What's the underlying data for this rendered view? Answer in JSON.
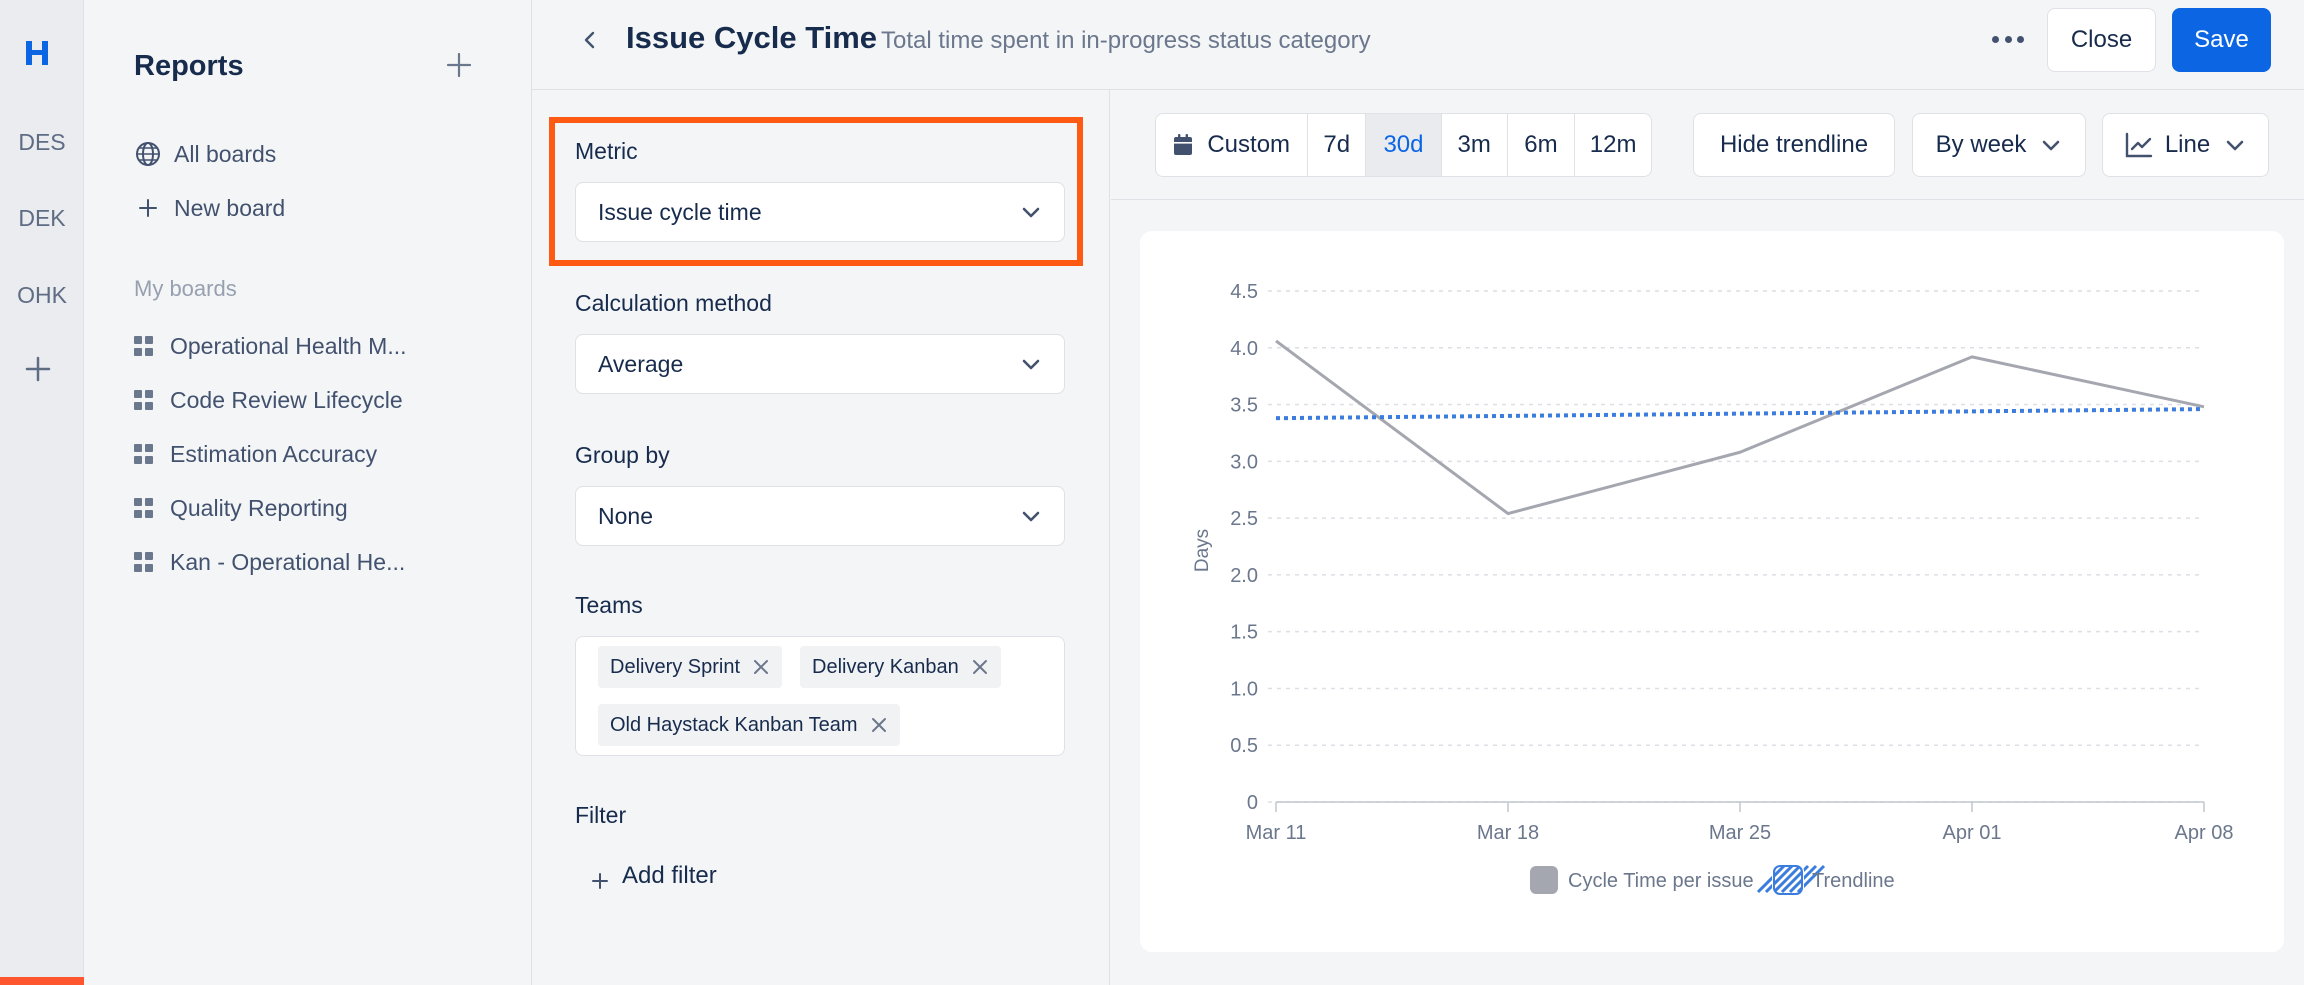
{
  "rail": {
    "projects": [
      "DES",
      "DEK",
      "OHK"
    ]
  },
  "sidebar": {
    "title": "Reports",
    "all_boards": "All boards",
    "new_board": "New board",
    "my_boards_label": "My boards",
    "boards": [
      "Operational Health M...",
      "Code Review Lifecycle",
      "Estimation Accuracy",
      "Quality Reporting",
      "Kan - Operational He..."
    ]
  },
  "header": {
    "title": "Issue Cycle Time",
    "subtitle": "Total time spent in in-progress status category",
    "close_label": "Close",
    "save_label": "Save"
  },
  "config": {
    "metric_label": "Metric",
    "metric_value": "Issue cycle time",
    "calc_label": "Calculation method",
    "calc_value": "Average",
    "group_label": "Group by",
    "group_value": "None",
    "teams_label": "Teams",
    "teams": [
      "Delivery Sprint",
      "Delivery Kanban",
      "Old Haystack Kanban Team"
    ],
    "filter_label": "Filter",
    "add_filter_label": "Add filter",
    "highlight_color": "#ff5a13"
  },
  "toolbar": {
    "ranges": [
      "Custom",
      "7d",
      "30d",
      "3m",
      "6m",
      "12m"
    ],
    "active_range": "30d",
    "trendline_label": "Hide trendline",
    "group_label": "By week",
    "chart_type_label": "Line"
  },
  "chart_data": {
    "type": "line",
    "x": [
      "Mar 11",
      "Mar 18",
      "Mar 25",
      "Apr 01",
      "Apr 08"
    ],
    "series": [
      {
        "name": "Cycle Time per issue",
        "values": [
          4.06,
          2.54,
          3.08,
          3.92,
          3.48
        ],
        "color": "#a5a7b0"
      },
      {
        "name": "Trendline",
        "values": [
          3.38,
          3.4,
          3.42,
          3.44,
          3.46
        ],
        "color": "#3b7ddd",
        "style": "dotted"
      }
    ],
    "ylabel": "Days",
    "xlabel": "",
    "ylim": [
      0,
      4.5
    ],
    "yticks": [
      "0",
      "0.5",
      "1.0",
      "1.5",
      "2.0",
      "2.5",
      "3.0",
      "3.5",
      "4.0",
      "4.5"
    ],
    "grid": true,
    "legend": "bottom-center"
  }
}
